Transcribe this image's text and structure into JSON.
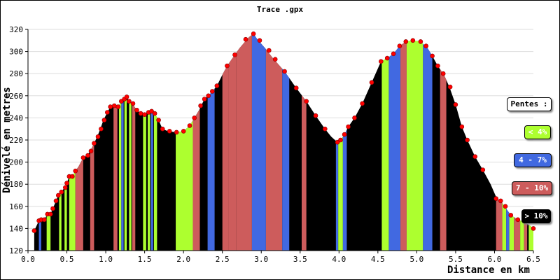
{
  "chart_data": {
    "type": "area",
    "title": "Trace .gpx",
    "xlabel": "Distance en km",
    "ylabel": "Dénivelé en metres",
    "xlim": [
      0,
      6.5
    ],
    "ylim": [
      120,
      320
    ],
    "xticks": [
      "0.0",
      "0.5",
      "1.0",
      "1.5",
      "2.0",
      "2.5",
      "3.0",
      "3.5",
      "4.0",
      "4.5",
      "5.0",
      "5.5",
      "6.0",
      "6.5"
    ],
    "yticks": [
      "120",
      "140",
      "160",
      "180",
      "200",
      "220",
      "240",
      "260",
      "280",
      "300",
      "320"
    ],
    "grid": true,
    "profile": [
      [
        0.08,
        138
      ],
      [
        0.14,
        147
      ],
      [
        0.17,
        148
      ],
      [
        0.21,
        148
      ],
      [
        0.25,
        153
      ],
      [
        0.29,
        153
      ],
      [
        0.32,
        158
      ],
      [
        0.36,
        165
      ],
      [
        0.39,
        170
      ],
      [
        0.43,
        173
      ],
      [
        0.47,
        177
      ],
      [
        0.5,
        181
      ],
      [
        0.53,
        187
      ],
      [
        0.57,
        187
      ],
      [
        0.61,
        192
      ],
      [
        0.65,
        196
      ],
      [
        0.71,
        204
      ],
      [
        0.76,
        206
      ],
      [
        0.8,
        210
      ],
      [
        0.85,
        217
      ],
      [
        0.89,
        223
      ],
      [
        0.93,
        230
      ],
      [
        0.97,
        238
      ],
      [
        1.02,
        245
      ],
      [
        1.06,
        250
      ],
      [
        1.11,
        251
      ],
      [
        1.16,
        250
      ],
      [
        1.2,
        255
      ],
      [
        1.24,
        257
      ],
      [
        1.27,
        259
      ],
      [
        1.3,
        255
      ],
      [
        1.35,
        252
      ],
      [
        1.4,
        247
      ],
      [
        1.45,
        244
      ],
      [
        1.5,
        243
      ],
      [
        1.55,
        245
      ],
      [
        1.59,
        246
      ],
      [
        1.63,
        244
      ],
      [
        1.68,
        238
      ],
      [
        1.73,
        230
      ],
      [
        1.8,
        228
      ],
      [
        1.9,
        227
      ],
      [
        2.0,
        228
      ],
      [
        2.08,
        233
      ],
      [
        2.14,
        240
      ],
      [
        2.2,
        247
      ],
      [
        2.27,
        257
      ],
      [
        2.32,
        260
      ],
      [
        2.37,
        264
      ],
      [
        2.43,
        269
      ],
      [
        2.5,
        279
      ],
      [
        2.56,
        287
      ],
      [
        2.6,
        291
      ],
      [
        2.66,
        297
      ],
      [
        2.72,
        303
      ],
      [
        2.78,
        308
      ],
      [
        2.84,
        313
      ],
      [
        2.9,
        316
      ],
      [
        2.95,
        311
      ],
      [
        3.05,
        303
      ],
      [
        3.15,
        294
      ],
      [
        3.3,
        282
      ],
      [
        3.45,
        267
      ],
      [
        3.58,
        255
      ],
      [
        3.7,
        242
      ],
      [
        3.82,
        230
      ],
      [
        3.9,
        223
      ],
      [
        3.98,
        218
      ],
      [
        4.02,
        220
      ],
      [
        4.07,
        225
      ],
      [
        4.12,
        232
      ],
      [
        4.2,
        240
      ],
      [
        4.3,
        253
      ],
      [
        4.42,
        272
      ],
      [
        4.54,
        291
      ],
      [
        4.62,
        294
      ],
      [
        4.7,
        298
      ],
      [
        4.78,
        305
      ],
      [
        4.86,
        309
      ],
      [
        4.95,
        310
      ],
      [
        5.05,
        309
      ],
      [
        5.14,
        303
      ],
      [
        5.2,
        296
      ],
      [
        5.27,
        287
      ],
      [
        5.35,
        279
      ],
      [
        5.42,
        268
      ],
      [
        5.5,
        252
      ],
      [
        5.58,
        232
      ],
      [
        5.65,
        220
      ],
      [
        5.75,
        205
      ],
      [
        5.85,
        193
      ],
      [
        5.95,
        180
      ],
      [
        6.03,
        167
      ],
      [
        6.08,
        165
      ],
      [
        6.15,
        158
      ],
      [
        6.21,
        152
      ],
      [
        6.3,
        148
      ],
      [
        6.38,
        146
      ],
      [
        6.45,
        143
      ],
      [
        6.5,
        140
      ]
    ],
    "markers": [
      [
        0.08,
        138
      ],
      [
        0.14,
        147
      ],
      [
        0.17,
        148
      ],
      [
        0.21,
        148
      ],
      [
        0.25,
        153
      ],
      [
        0.29,
        153
      ],
      [
        0.32,
        158
      ],
      [
        0.36,
        165
      ],
      [
        0.39,
        170
      ],
      [
        0.43,
        173
      ],
      [
        0.48,
        177
      ],
      [
        0.5,
        181
      ],
      [
        0.53,
        187
      ],
      [
        0.57,
        187
      ],
      [
        0.61,
        192
      ],
      [
        0.71,
        204
      ],
      [
        0.77,
        206
      ],
      [
        0.81,
        210
      ],
      [
        0.85,
        217
      ],
      [
        0.9,
        223
      ],
      [
        0.94,
        230
      ],
      [
        0.98,
        238
      ],
      [
        1.02,
        245
      ],
      [
        1.06,
        250
      ],
      [
        1.11,
        251
      ],
      [
        1.16,
        250
      ],
      [
        1.2,
        255
      ],
      [
        1.24,
        257
      ],
      [
        1.27,
        259
      ],
      [
        1.3,
        255
      ],
      [
        1.35,
        253
      ],
      [
        1.4,
        247
      ],
      [
        1.45,
        244
      ],
      [
        1.5,
        243
      ],
      [
        1.55,
        245
      ],
      [
        1.59,
        246
      ],
      [
        1.63,
        244
      ],
      [
        1.68,
        238
      ],
      [
        1.73,
        230
      ],
      [
        1.82,
        228
      ],
      [
        1.91,
        227
      ],
      [
        2.0,
        228
      ],
      [
        2.08,
        233
      ],
      [
        2.14,
        240
      ],
      [
        2.22,
        251
      ],
      [
        2.27,
        257
      ],
      [
        2.32,
        260
      ],
      [
        2.37,
        264
      ],
      [
        2.43,
        269
      ],
      [
        2.56,
        287
      ],
      [
        2.66,
        297
      ],
      [
        2.8,
        311
      ],
      [
        2.9,
        316
      ],
      [
        2.98,
        310
      ],
      [
        3.1,
        301
      ],
      [
        3.18,
        293
      ],
      [
        3.3,
        282
      ],
      [
        3.45,
        267
      ],
      [
        3.58,
        255
      ],
      [
        3.7,
        242
      ],
      [
        3.82,
        230
      ],
      [
        3.98,
        218
      ],
      [
        4.02,
        220
      ],
      [
        4.07,
        225
      ],
      [
        4.12,
        232
      ],
      [
        4.2,
        240
      ],
      [
        4.3,
        253
      ],
      [
        4.42,
        272
      ],
      [
        4.54,
        291
      ],
      [
        4.62,
        294
      ],
      [
        4.7,
        298
      ],
      [
        4.78,
        305
      ],
      [
        4.86,
        309
      ],
      [
        4.95,
        310
      ],
      [
        5.05,
        309
      ],
      [
        5.12,
        305
      ],
      [
        5.2,
        296
      ],
      [
        5.27,
        287
      ],
      [
        5.34,
        280
      ],
      [
        5.43,
        268
      ],
      [
        5.5,
        252
      ],
      [
        5.58,
        232
      ],
      [
        5.65,
        220
      ],
      [
        5.75,
        205
      ],
      [
        5.85,
        193
      ],
      [
        6.02,
        167
      ],
      [
        6.08,
        165
      ],
      [
        6.14,
        160
      ],
      [
        6.21,
        152
      ],
      [
        6.3,
        148
      ],
      [
        6.4,
        146
      ],
      [
        6.5,
        140
      ]
    ],
    "slope_bands": [
      [
        0.14,
        0.17,
        "blue"
      ],
      [
        0.24,
        0.29,
        "green"
      ],
      [
        0.4,
        0.43,
        "green"
      ],
      [
        0.47,
        0.5,
        "green"
      ],
      [
        0.53,
        0.61,
        "green"
      ],
      [
        0.61,
        0.71,
        "red"
      ],
      [
        0.8,
        0.85,
        "red"
      ],
      [
        1.1,
        1.15,
        "red"
      ],
      [
        1.17,
        1.2,
        "green"
      ],
      [
        1.2,
        1.23,
        "blue"
      ],
      [
        1.24,
        1.27,
        "green"
      ],
      [
        1.3,
        1.33,
        "green"
      ],
      [
        1.34,
        1.38,
        "red"
      ],
      [
        1.48,
        1.52,
        "green"
      ],
      [
        1.54,
        1.57,
        "green"
      ],
      [
        1.58,
        1.61,
        "blue"
      ],
      [
        1.62,
        1.66,
        "green"
      ],
      [
        1.9,
        2.12,
        "green"
      ],
      [
        2.12,
        2.21,
        "red"
      ],
      [
        2.31,
        2.4,
        "blue"
      ],
      [
        2.5,
        2.58,
        "red"
      ],
      [
        2.58,
        2.68,
        "red"
      ],
      [
        2.68,
        2.88,
        "red"
      ],
      [
        2.88,
        3.06,
        "blue"
      ],
      [
        3.06,
        3.27,
        "red"
      ],
      [
        3.27,
        3.36,
        "blue"
      ],
      [
        3.52,
        3.58,
        "red"
      ],
      [
        3.96,
        3.99,
        "blue"
      ],
      [
        3.99,
        4.05,
        "green"
      ],
      [
        4.05,
        4.1,
        "blue"
      ],
      [
        4.55,
        4.64,
        "green"
      ],
      [
        4.64,
        4.79,
        "blue"
      ],
      [
        4.79,
        4.87,
        "red"
      ],
      [
        4.87,
        5.08,
        "green"
      ],
      [
        5.08,
        5.2,
        "blue"
      ],
      [
        5.3,
        5.38,
        "red"
      ],
      [
        6.02,
        6.1,
        "red"
      ],
      [
        6.1,
        6.15,
        "green"
      ],
      [
        6.15,
        6.19,
        "blue"
      ],
      [
        6.19,
        6.25,
        "green"
      ],
      [
        6.25,
        6.33,
        "red"
      ],
      [
        6.33,
        6.38,
        "green"
      ],
      [
        6.38,
        6.42,
        "red"
      ],
      [
        6.44,
        6.5,
        "green"
      ]
    ],
    "legend": {
      "title": "Pentes :",
      "items": [
        {
          "label": "< 4%",
          "color": "#adff2f",
          "text_color": "#ffffff"
        },
        {
          "label": "4 - 7%",
          "color": "#4169e1",
          "text_color": "#ffffff"
        },
        {
          "label": "7 - 10%",
          "color": "#cd5c5c",
          "text_color": "#ffffff"
        },
        {
          "label": "> 10%",
          "color": "#000000",
          "text_color": "#ffffff"
        }
      ]
    },
    "colors": {
      "green": "#adff2f",
      "blue": "#4169e1",
      "red": "#cd5c5c",
      "black": "#000000",
      "marker": "#ff0000",
      "plot_bg": "#ffffff",
      "outer_bg": "#e8e8e8",
      "grid": "#dddddd"
    }
  }
}
